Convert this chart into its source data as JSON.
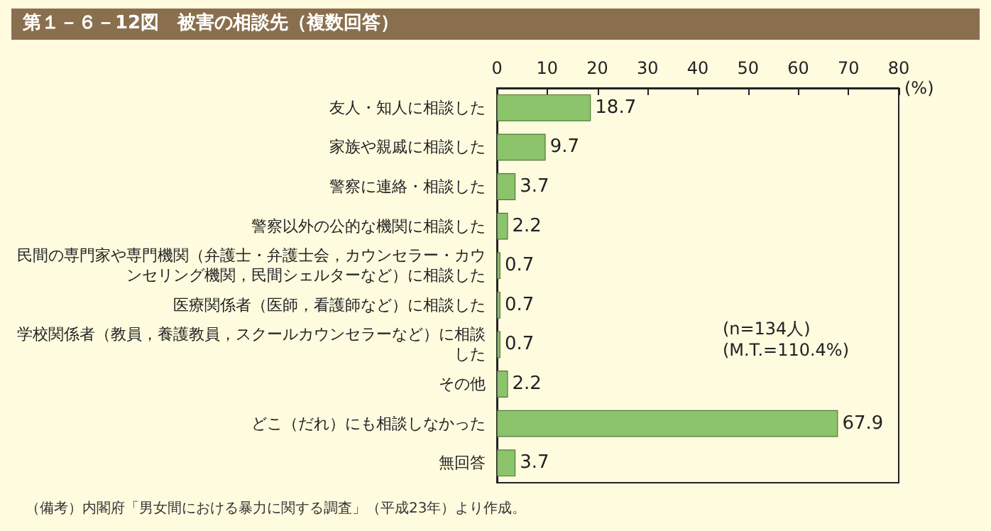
{
  "chart_data": {
    "type": "bar",
    "orientation": "horizontal",
    "title": "第１－６－12図　被害の相談先（複数回答）",
    "xlabel": "(%)",
    "categories": [
      "友人・知人に相談した",
      "家族や親戚に相談した",
      "警察に連絡・相談した",
      "警察以外の公的な機関に相談した",
      "民間の専門家や専門機関（弁護士・弁護士会，カウンセラー・カウンセリング機関，民間シェルターなど）に相談した",
      "医療関係者（医師，看護師など）に相談した",
      "学校関係者（教員，養護教員，スクールカウンセラーなど）に相談した",
      "その他",
      "どこ（だれ）にも相談しなかった",
      "無回答"
    ],
    "values": [
      18.7,
      9.7,
      3.7,
      2.2,
      0.7,
      0.7,
      0.7,
      2.2,
      67.9,
      3.7
    ],
    "color": "#8cc46c",
    "data_labels": true,
    "grid": false,
    "xlim": [
      0,
      80
    ],
    "xticks": [
      0,
      10,
      20,
      30,
      40,
      50,
      60,
      70,
      80
    ],
    "annotations": [
      "(n=134人)\n(M.T.=110.4%)",
      "（備考）内閣府「男女間における暴力に関する調査」（平成23年）より作成。"
    ]
  }
}
